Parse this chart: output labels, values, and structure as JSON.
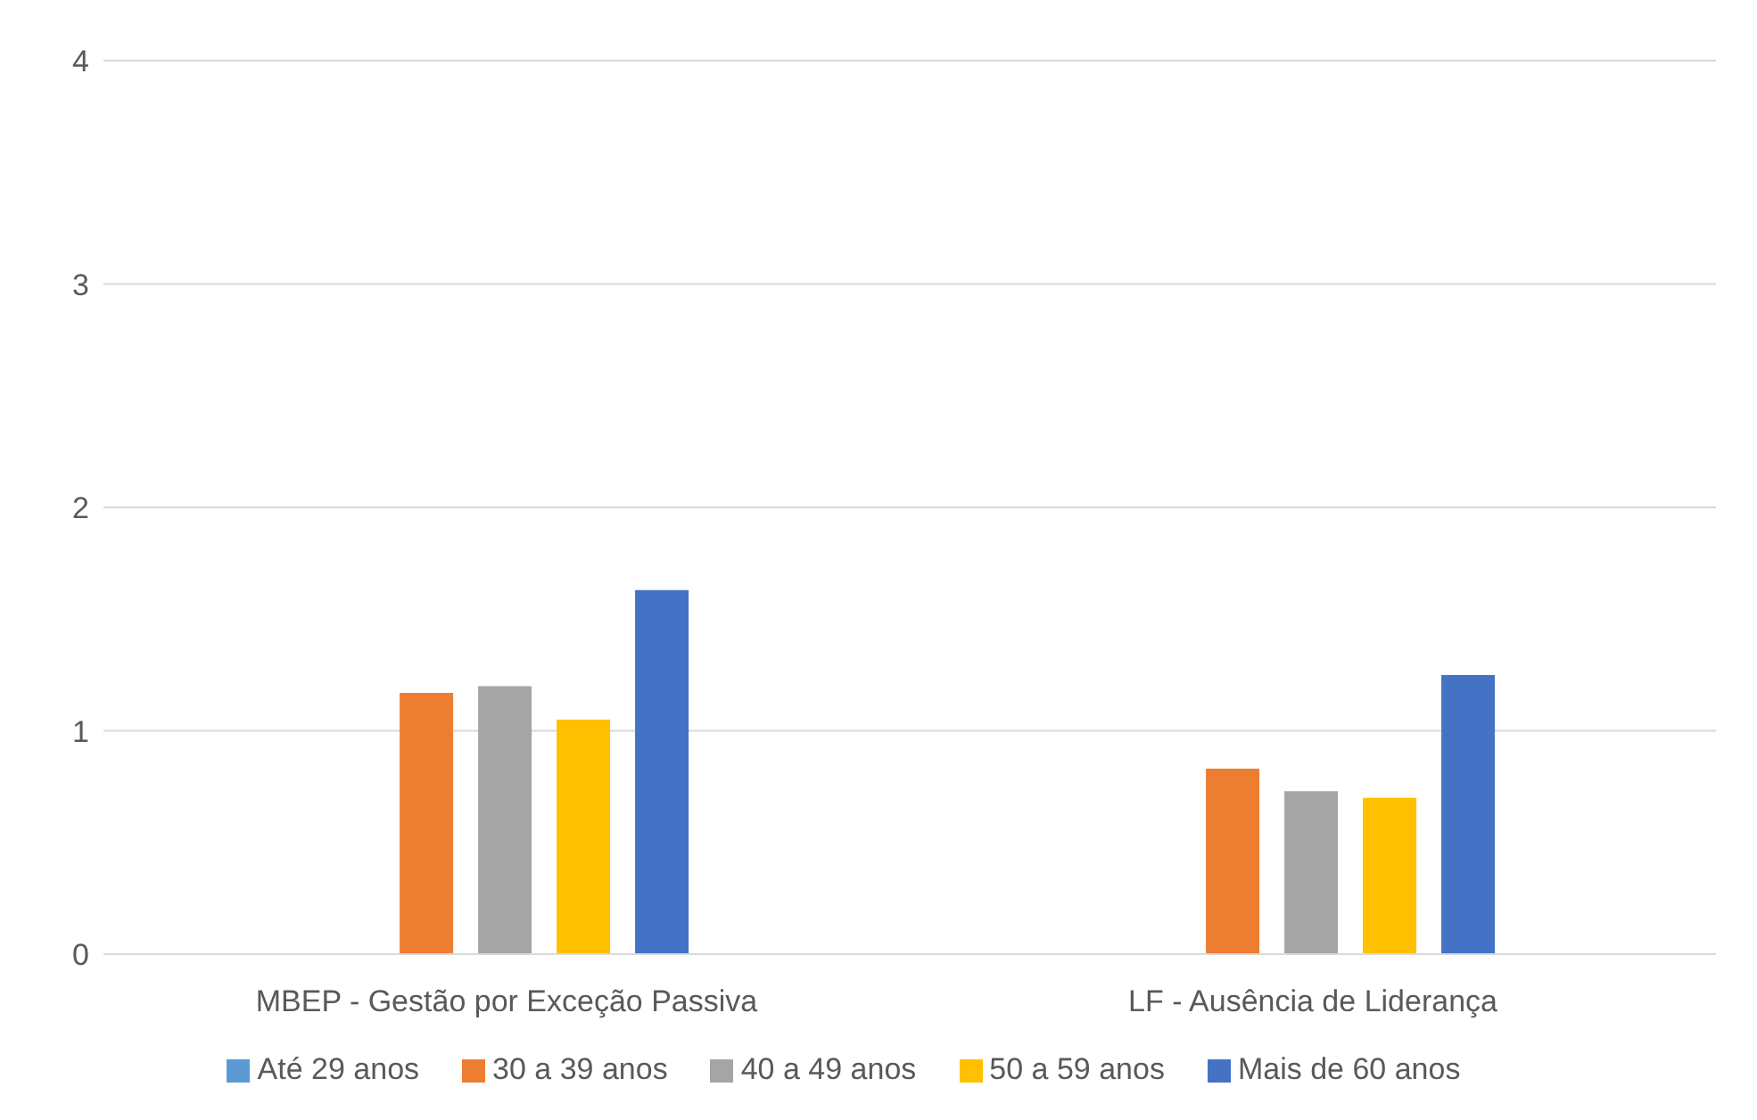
{
  "chart_data": {
    "type": "bar",
    "categories": [
      "MBEP - Gestão por Exceção Passiva",
      "LF - Ausência de Liderança"
    ],
    "series": [
      {
        "name": "Até 29 anos",
        "color": "#5b9bd5",
        "values": [
          null,
          null
        ]
      },
      {
        "name": "30 a 39 anos",
        "color": "#ed7d31",
        "values": [
          1.17,
          0.83
        ]
      },
      {
        "name": "40 a 49 anos",
        "color": "#a5a5a5",
        "values": [
          1.2,
          0.73
        ]
      },
      {
        "name": "50 a 59 anos",
        "color": "#ffc000",
        "values": [
          1.05,
          0.7
        ]
      },
      {
        "name": "Mais de 60 anos",
        "color": "#4472c4",
        "values": [
          1.63,
          1.25
        ]
      }
    ],
    "ylim": [
      0,
      4
    ],
    "yticks": [
      0,
      1,
      2,
      3,
      4
    ],
    "grid": "y",
    "legend": "bottom"
  }
}
